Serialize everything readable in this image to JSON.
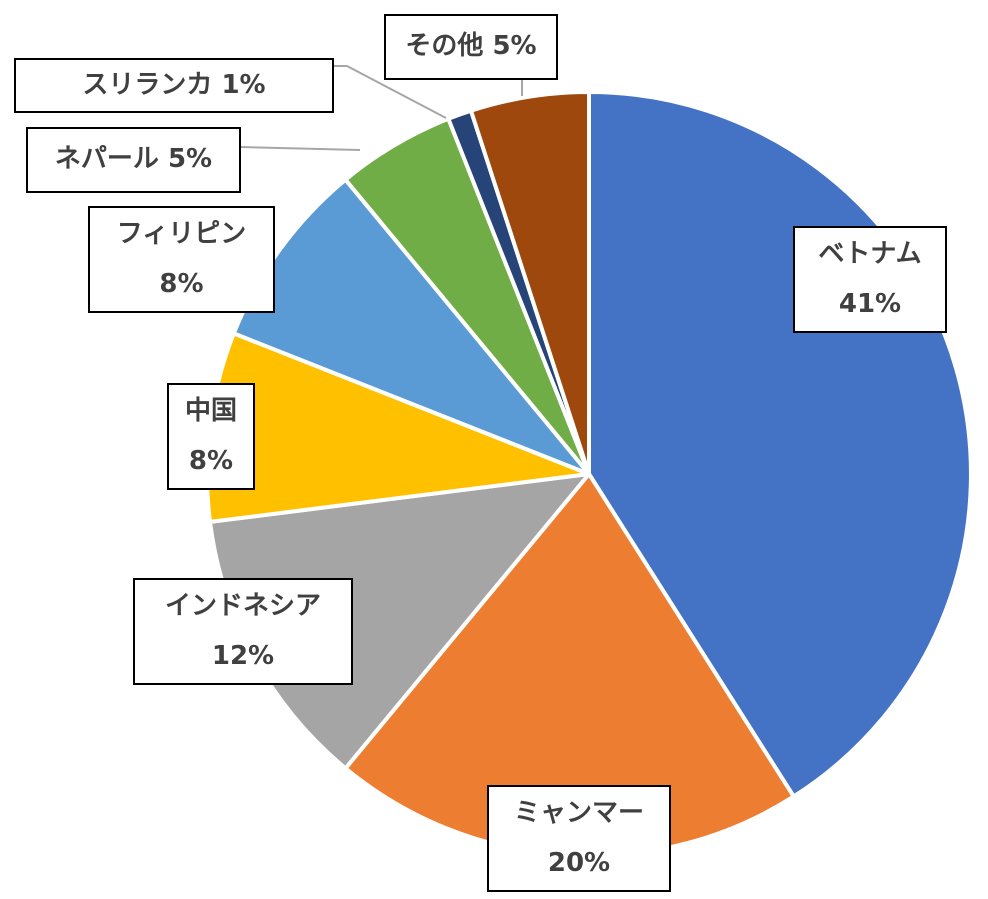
{
  "chart_data": {
    "type": "pie",
    "title": "",
    "start_angle_deg": 0,
    "direction": "clockwise",
    "center": [
      589,
      474
    ],
    "radius": 382,
    "slices": [
      {
        "label": "ベトナム",
        "value": 41,
        "pct_text": "41%",
        "color": "#4472C4"
      },
      {
        "label": "ミャンマー",
        "value": 20,
        "pct_text": "20%",
        "color": "#ED7D31"
      },
      {
        "label": "インドネシア",
        "value": 12,
        "pct_text": "12%",
        "color": "#A5A5A5"
      },
      {
        "label": "中国",
        "value": 8,
        "pct_text": "8%",
        "color": "#FFC000"
      },
      {
        "label": "フィリピン",
        "value": 8,
        "pct_text": "8%",
        "color": "#5B9BD5"
      },
      {
        "label": "ネパール",
        "value": 5,
        "pct_text": "5%",
        "color": "#70AD47"
      },
      {
        "label": "スリランカ",
        "value": 1,
        "pct_text": "1%",
        "color": "#264478"
      },
      {
        "label": "その他",
        "value": 5,
        "pct_text": "5%",
        "color": "#9E480E"
      }
    ]
  },
  "labels": {
    "vietnam": {
      "name": "ベトナム",
      "pct": "41%"
    },
    "myanmar": {
      "name": "ミャンマー",
      "pct": "20%"
    },
    "indonesia": {
      "name": "インドネシア",
      "pct": "12%"
    },
    "china": {
      "name": "中国",
      "pct": "8%"
    },
    "philippines": {
      "name": "フィリピン",
      "pct": "8%"
    },
    "nepal": {
      "text": "ネパール 5%"
    },
    "srilanka": {
      "text": "スリランカ 1%"
    },
    "other": {
      "text": "その他 5%"
    }
  }
}
